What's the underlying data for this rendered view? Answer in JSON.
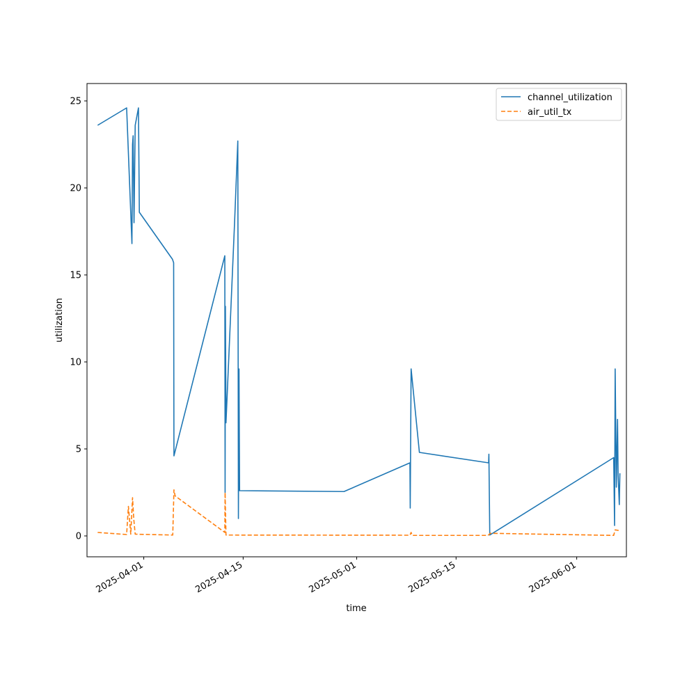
{
  "chart_data": {
    "type": "line",
    "xlabel": "time",
    "ylabel": "utilization",
    "xlim": [
      "2025-03-24",
      "2025-06-08"
    ],
    "ylim": [
      -1.2,
      26
    ],
    "x_ticks": [
      {
        "value": "2025-04-01",
        "label": "2025-04-01"
      },
      {
        "value": "2025-04-15",
        "label": "2025-04-15"
      },
      {
        "value": "2025-05-01",
        "label": "2025-05-01"
      },
      {
        "value": "2025-05-15",
        "label": "2025-05-15"
      },
      {
        "value": "2025-06-01",
        "label": "2025-06-01"
      }
    ],
    "y_ticks": [
      {
        "value": 0,
        "label": "0"
      },
      {
        "value": 5,
        "label": "5"
      },
      {
        "value": 10,
        "label": "10"
      },
      {
        "value": 15,
        "label": "15"
      },
      {
        "value": 20,
        "label": "20"
      },
      {
        "value": 25,
        "label": "25"
      }
    ],
    "grid": false,
    "legend_position": "top-right",
    "series": [
      {
        "name": "channel_utilization",
        "color": "#1f77b4",
        "dash": "solid",
        "points": [
          [
            "2025-03-25T12:00",
            23.6
          ],
          [
            "2025-03-29T14:00",
            24.6
          ],
          [
            "2025-03-30T08:00",
            16.8
          ],
          [
            "2025-03-30T10:00",
            22.5
          ],
          [
            "2025-03-30T12:00",
            23.0
          ],
          [
            "2025-03-30T15:00",
            18.0
          ],
          [
            "2025-03-30T19:00",
            23.6
          ],
          [
            "2025-03-31T06:00",
            24.6
          ],
          [
            "2025-03-31T09:00",
            18.6
          ],
          [
            "2025-04-05T01:00",
            15.9
          ],
          [
            "2025-04-05T05:00",
            15.7
          ],
          [
            "2025-04-05T06:00",
            4.6
          ],
          [
            "2025-04-12T10:00",
            16.1
          ],
          [
            "2025-04-12T11:00",
            2.5
          ],
          [
            "2025-04-12T12:00",
            13.2
          ],
          [
            "2025-04-12T14:00",
            6.5
          ],
          [
            "2025-04-13T19:00",
            18.0
          ],
          [
            "2025-04-14T06:00",
            22.7
          ],
          [
            "2025-04-14T08:00",
            1.0
          ],
          [
            "2025-04-14T10:00",
            9.6
          ],
          [
            "2025-04-14T12:00",
            2.6
          ],
          [
            "2025-04-29T05:00",
            2.55
          ],
          [
            "2025-05-08T12:00",
            4.2
          ],
          [
            "2025-05-08T13:00",
            1.6
          ],
          [
            "2025-05-08T16:00",
            9.6
          ],
          [
            "2025-05-09T20:00",
            4.8
          ],
          [
            "2025-05-19T14:00",
            4.2
          ],
          [
            "2025-05-19T15:00",
            4.7
          ],
          [
            "2025-05-19T18:00",
            0.05
          ],
          [
            "2025-06-06T05:00",
            4.5
          ],
          [
            "2025-06-06T08:00",
            0.6
          ],
          [
            "2025-06-06T10:00",
            9.6
          ],
          [
            "2025-06-06T14:00",
            2.8
          ],
          [
            "2025-06-06T18:00",
            6.7
          ],
          [
            "2025-06-06T20:00",
            3.5
          ],
          [
            "2025-06-07T00:00",
            1.8
          ],
          [
            "2025-06-07T02:00",
            3.6
          ]
        ]
      },
      {
        "name": "air_util_tx",
        "color": "#ff7f0e",
        "dash": "dashed",
        "points": [
          [
            "2025-03-25T12:00",
            0.2
          ],
          [
            "2025-03-29T14:00",
            0.08
          ],
          [
            "2025-03-29T20:00",
            1.7
          ],
          [
            "2025-03-30T04:00",
            0.1
          ],
          [
            "2025-03-30T10:00",
            2.2
          ],
          [
            "2025-03-30T14:00",
            1.0
          ],
          [
            "2025-03-30T19:00",
            0.1
          ],
          [
            "2025-04-05T02:00",
            0.05
          ],
          [
            "2025-04-05T06:00",
            2.65
          ],
          [
            "2025-04-05T10:00",
            2.3
          ],
          [
            "2025-04-12T10:00",
            0.2
          ],
          [
            "2025-04-12T11:00",
            2.5
          ],
          [
            "2025-04-12T14:00",
            0.05
          ],
          [
            "2025-05-08T12:00",
            0.04
          ],
          [
            "2025-05-08T16:00",
            0.2
          ],
          [
            "2025-05-08T20:00",
            0.03
          ],
          [
            "2025-05-19T12:00",
            0.03
          ],
          [
            "2025-05-19T20:00",
            0.15
          ],
          [
            "2025-06-06T05:00",
            0.03
          ],
          [
            "2025-06-06T10:00",
            0.35
          ],
          [
            "2025-06-07T02:00",
            0.3
          ]
        ]
      }
    ]
  }
}
